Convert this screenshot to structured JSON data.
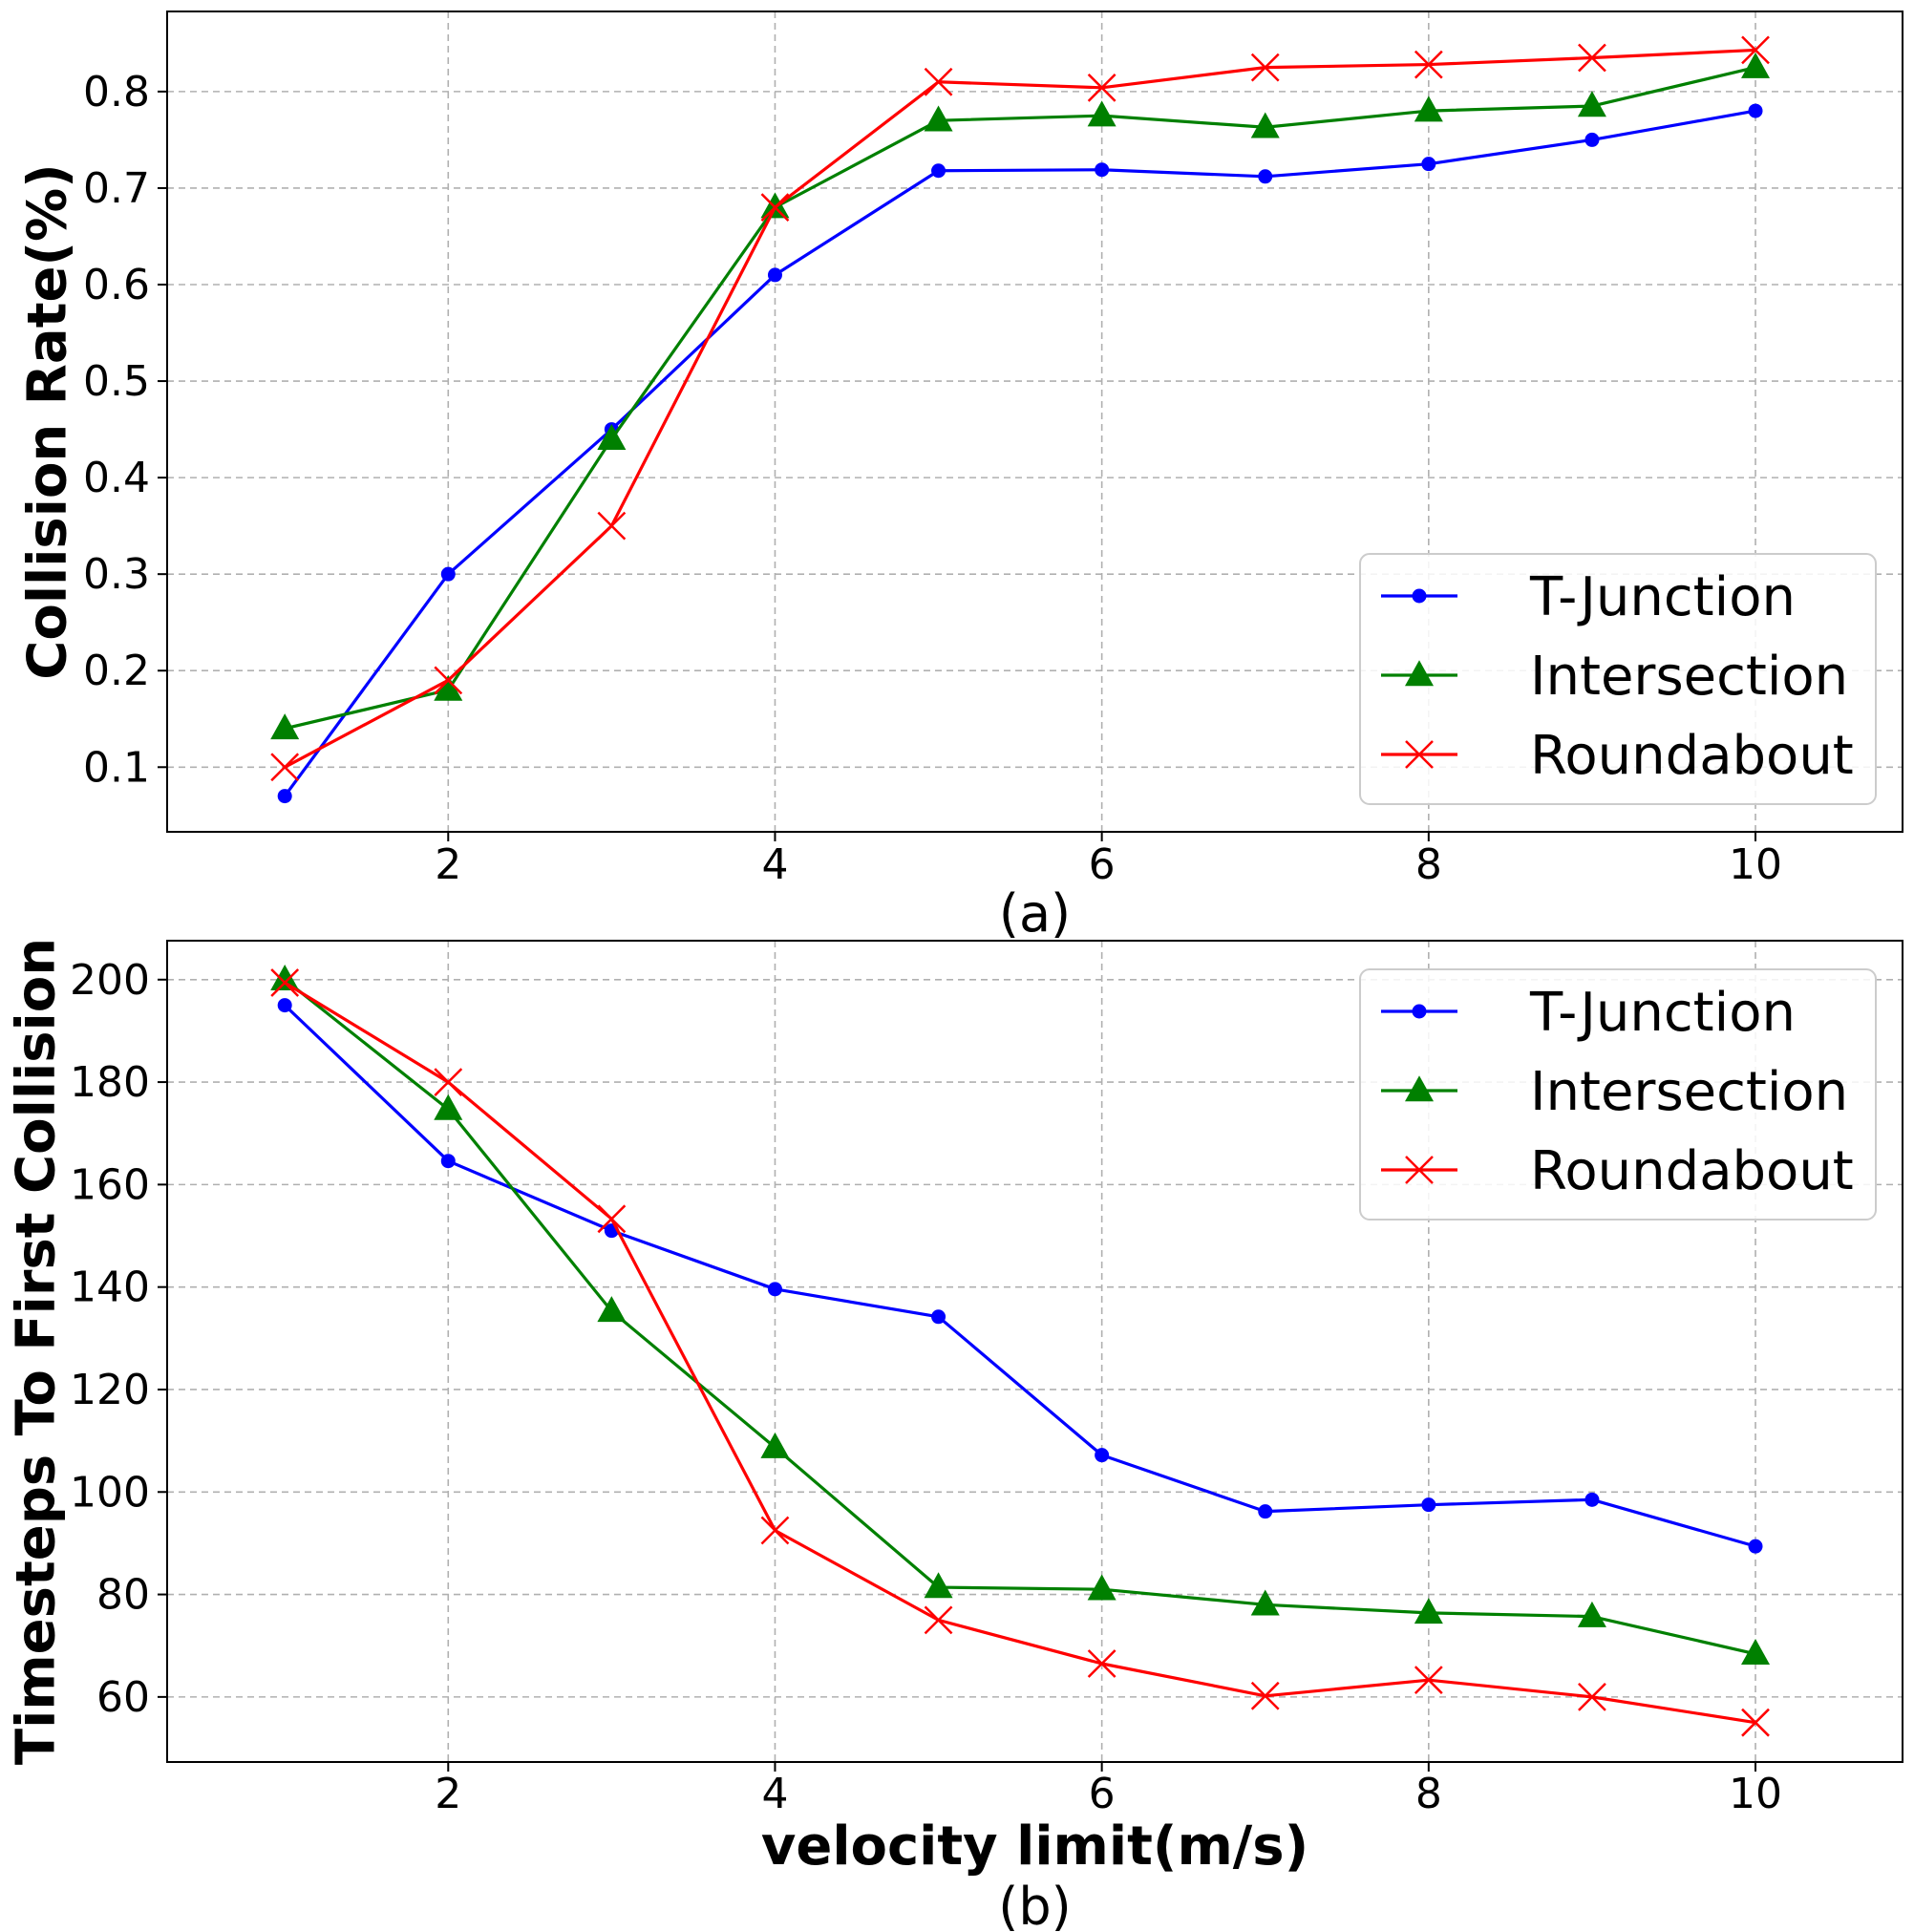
{
  "chart_data": [
    {
      "type": "line",
      "caption": "(a)",
      "xlabel": "",
      "ylabel": "Collision Rate(%)",
      "x": [
        1,
        2,
        3,
        4,
        5,
        6,
        7,
        8,
        9,
        10
      ],
      "xlim": [
        0.28,
        10.9
      ],
      "ylim": [
        0.033,
        0.883
      ],
      "xticks": [
        2,
        4,
        6,
        8,
        10
      ],
      "xtick_labels": [
        "2",
        "4",
        "6",
        "8",
        "10"
      ],
      "yticks": [
        0.1,
        0.2,
        0.3,
        0.4,
        0.5,
        0.6,
        0.7,
        0.8
      ],
      "ytick_labels": [
        "0.1",
        "0.2",
        "0.3",
        "0.4",
        "0.5",
        "0.6",
        "0.7",
        "0.8"
      ],
      "grid": true,
      "legend_position": "lower-right",
      "series": [
        {
          "name": "T-Junction",
          "color": "#0000ff",
          "marker": "circle",
          "values": [
            0.07,
            0.3,
            0.45,
            0.61,
            0.718,
            0.719,
            0.712,
            0.725,
            0.75,
            0.78
          ]
        },
        {
          "name": "Intersection",
          "color": "#008000",
          "marker": "triangle",
          "values": [
            0.14,
            0.18,
            0.44,
            0.68,
            0.77,
            0.775,
            0.763,
            0.78,
            0.785,
            0.825
          ]
        },
        {
          "name": "Roundabout",
          "color": "#ff0000",
          "marker": "x",
          "values": [
            0.1,
            0.19,
            0.35,
            0.68,
            0.81,
            0.804,
            0.825,
            0.828,
            0.835,
            0.843
          ]
        }
      ]
    },
    {
      "type": "line",
      "caption": "(b)",
      "xlabel": "velocity limit(m/s)",
      "ylabel": "Timesteps To First Collision",
      "x": [
        1,
        2,
        3,
        4,
        5,
        6,
        7,
        8,
        9,
        10
      ],
      "xlim": [
        0.28,
        10.9
      ],
      "ylim": [
        47.3,
        207.6
      ],
      "xticks": [
        2,
        4,
        6,
        8,
        10
      ],
      "xtick_labels": [
        "2",
        "4",
        "6",
        "8",
        "10"
      ],
      "yticks": [
        60,
        80,
        100,
        120,
        140,
        160,
        180,
        200
      ],
      "ytick_labels": [
        "60",
        "80",
        "100",
        "120",
        "140",
        "160",
        "180",
        "200"
      ],
      "grid": true,
      "legend_position": "upper-right",
      "series": [
        {
          "name": "T-Junction",
          "color": "#0000ff",
          "marker": "circle",
          "values": [
            195,
            164.6,
            151,
            139.6,
            134.2,
            107.2,
            96.2,
            97.5,
            98.5,
            89.4
          ]
        },
        {
          "name": "Intersection",
          "color": "#008000",
          "marker": "triangle",
          "values": [
            200,
            174.7,
            135.3,
            108.7,
            81.4,
            81,
            78,
            76.4,
            75.7,
            68.4
          ]
        },
        {
          "name": "Roundabout",
          "color": "#ff0000",
          "marker": "x",
          "values": [
            199.4,
            180,
            153.3,
            92.5,
            75,
            66.5,
            60.2,
            63.3,
            60,
            55
          ]
        }
      ]
    }
  ]
}
